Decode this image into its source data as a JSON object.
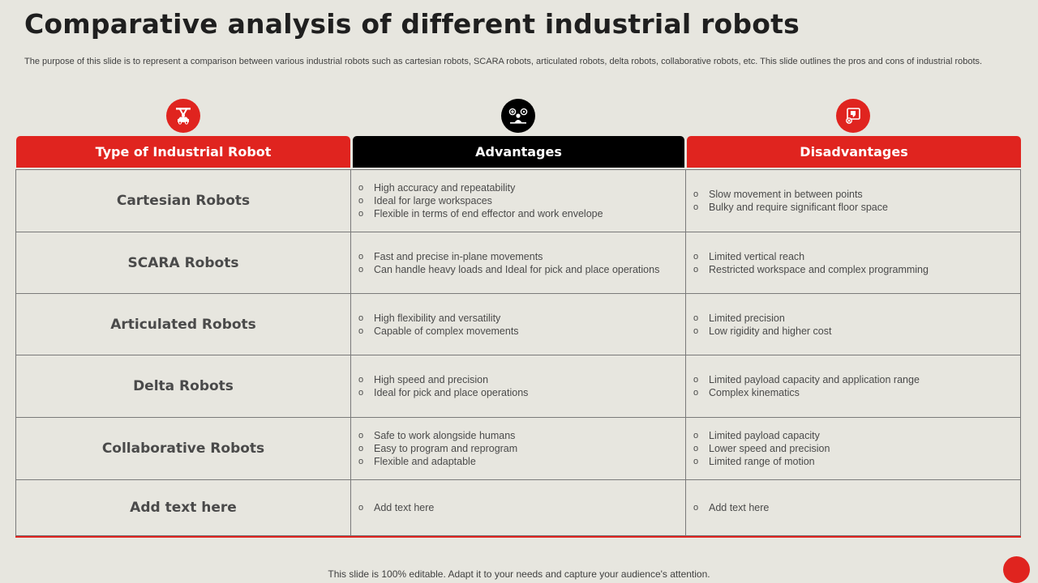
{
  "title": "Comparative analysis of different industrial robots",
  "subtitle": "The purpose of this slide is to represent a comparison between various industrial robots such as cartesian robots, SCARA robots, articulated robots, delta robots, collaborative robots, etc. This slide outlines the pros and cons of industrial robots.",
  "colors": {
    "accent": "#e0241f",
    "dark": "#000000",
    "background": "#e7e6df"
  },
  "columns": [
    {
      "label": "Type of Industrial Robot",
      "icon": "robot-arm-icon",
      "color": "#e0241f"
    },
    {
      "label": "Advantages",
      "icon": "team-skills-icon",
      "color": "#000000"
    },
    {
      "label": "Disadvantages",
      "icon": "thumbs-down-icon",
      "color": "#e0241f"
    }
  ],
  "rows": [
    {
      "type": "Cartesian Robots",
      "advantages": [
        "High accuracy and repeatability",
        "Ideal for large workspaces",
        "Flexible in terms of end effector and work envelope"
      ],
      "disadvantages": [
        "Slow movement  in between points",
        "Bulky and require  significant floor  space"
      ]
    },
    {
      "type": "SCARA Robots",
      "advantages": [
        "Fast and precise in-plane movements",
        "Can handle heavy loads and Ideal for pick and place operations"
      ],
      "disadvantages": [
        "Limited vertical reach",
        "Restricted workspace and complex programming"
      ]
    },
    {
      "type": "Articulated Robots",
      "advantages": [
        "High flexibility and versatility",
        "Capable of complex movements"
      ],
      "disadvantages": [
        "Limited precision",
        "Low rigidity and higher cost"
      ]
    },
    {
      "type": "Delta Robots",
      "advantages": [
        "High speed and precision",
        "Ideal for pick and place operations"
      ],
      "disadvantages": [
        "Limited payload capacity and application range",
        "Complex kinematics"
      ]
    },
    {
      "type": "Collaborative Robots",
      "advantages": [
        "Safe to work alongside humans",
        "Easy to program and reprogram",
        "Flexible and adaptable"
      ],
      "disadvantages": [
        "Limited payload capacity",
        "Lower speed and precision",
        "Limited range of motion"
      ]
    },
    {
      "type": "Add text here",
      "advantages": [
        "Add text here"
      ],
      "disadvantages": [
        "Add text here"
      ]
    }
  ],
  "footer": "This slide is 100% editable. Adapt it to your needs and capture your audience's attention."
}
